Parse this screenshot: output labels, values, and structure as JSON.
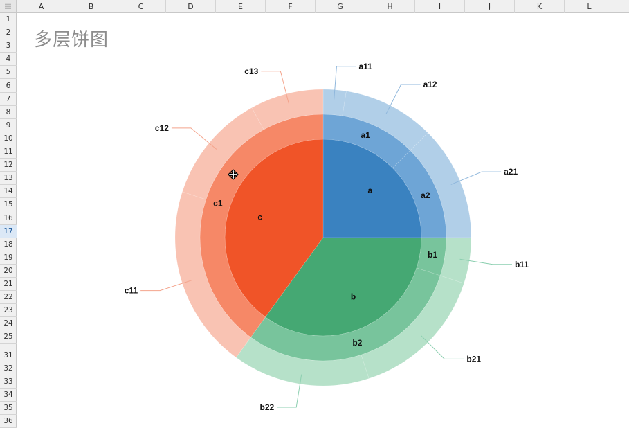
{
  "spreadsheet": {
    "columns": [
      "A",
      "B",
      "C",
      "D",
      "E",
      "F",
      "G",
      "H",
      "I",
      "J",
      "K",
      "L"
    ],
    "rows": [
      "1",
      "2",
      "3",
      "4",
      "5",
      "6",
      "7",
      "8",
      "9",
      "10",
      "11",
      "12",
      "13",
      "14",
      "15",
      "16",
      "17",
      "18",
      "19",
      "20",
      "21",
      "22",
      "23",
      "24",
      "25",
      "31",
      "32",
      "33",
      "34",
      "35",
      "36"
    ],
    "selected_row": "17"
  },
  "chart_data": {
    "type": "sunburst",
    "title": "多层饼图",
    "colors": {
      "a": [
        "#3a82c0",
        "#6ea5d6",
        "#b1cfe8"
      ],
      "b": [
        "#45a873",
        "#78c49c",
        "#b6e1c9"
      ],
      "c": [
        "#f05428",
        "#f68867",
        "#f9c3b3"
      ],
      "leader_a": "#8fb7dc",
      "leader_b": "#8ccfb0",
      "leader_c": "#f4a48c"
    },
    "inner": [
      {
        "label": "a",
        "value": 25
      },
      {
        "label": "b",
        "value": 35
      },
      {
        "label": "c",
        "value": 40
      }
    ],
    "middle": [
      {
        "label": "a1",
        "value": 12.5,
        "parent": "a"
      },
      {
        "label": "a2",
        "value": 12.5,
        "parent": "a"
      },
      {
        "label": "b1",
        "value": 5,
        "parent": "b"
      },
      {
        "label": "b2",
        "value": 30,
        "parent": "b"
      },
      {
        "label": "c1",
        "value": 40,
        "parent": "c"
      }
    ],
    "outer": [
      {
        "label": "a11",
        "value": 2.5,
        "parent": "a1"
      },
      {
        "label": "a12",
        "value": 10,
        "parent": "a1"
      },
      {
        "label": "a21",
        "value": 12.5,
        "parent": "a2"
      },
      {
        "label": "b11",
        "value": 5,
        "parent": "b1"
      },
      {
        "label": "b21",
        "value": 15,
        "parent": "b2"
      },
      {
        "label": "b22",
        "value": 15,
        "parent": "b2"
      },
      {
        "label": "c11",
        "value": 20,
        "parent": "c1"
      },
      {
        "label": "c12",
        "value": 12,
        "parent": "c1"
      },
      {
        "label": "c13",
        "value": 8,
        "parent": "c1"
      }
    ]
  }
}
